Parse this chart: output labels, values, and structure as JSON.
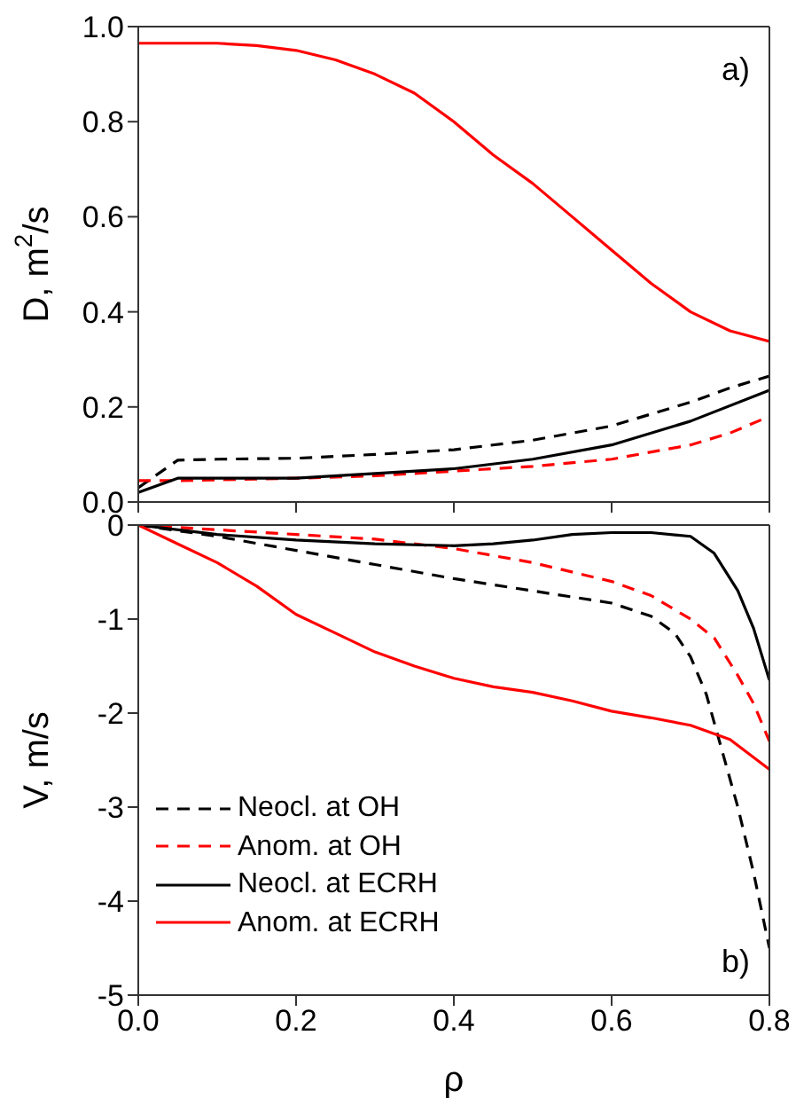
{
  "chart_data": [
    {
      "type": "line",
      "ylabel": "D, m$^{2}$/s",
      "xlim": [
        0,
        0.8
      ],
      "xticks": [
        0,
        0.2,
        0.4,
        0.6,
        0.8
      ],
      "ylim": [
        0,
        1.0
      ],
      "yticks": [
        {
          "value": 0,
          "label": "0.0"
        },
        0.2,
        0.4,
        0.6,
        0.8,
        {
          "value": 1.0,
          "label": "1.0"
        }
      ],
      "tick_labels": "y",
      "grid": false,
      "legend": false,
      "marker": "none",
      "annotations": [
        "a)"
      ],
      "series": [
        {
          "color": "#000000",
          "line_style": "dashed",
          "x": [
            0,
            0.05,
            0.1,
            0.2,
            0.3,
            0.4,
            0.5,
            0.6,
            0.7,
            0.75,
            0.8
          ],
          "values": [
            0.03,
            0.088,
            0.09,
            0.092,
            0.1,
            0.11,
            0.13,
            0.16,
            0.21,
            0.24,
            0.265
          ]
        },
        {
          "color": "#ff0000",
          "line_style": "dashed",
          "x": [
            0,
            0.05,
            0.2,
            0.3,
            0.4,
            0.5,
            0.6,
            0.7,
            0.75,
            0.8
          ],
          "values": [
            0.045,
            0.045,
            0.05,
            0.055,
            0.065,
            0.075,
            0.09,
            0.12,
            0.145,
            0.18
          ]
        },
        {
          "color": "#000000",
          "line_style": "solid",
          "x": [
            0,
            0.05,
            0.2,
            0.3,
            0.4,
            0.5,
            0.6,
            0.7,
            0.8
          ],
          "values": [
            0.02,
            0.05,
            0.05,
            0.06,
            0.07,
            0.09,
            0.12,
            0.17,
            0.235
          ]
        },
        {
          "color": "#ff0000",
          "line_style": "solid",
          "x": [
            0,
            0.1,
            0.15,
            0.2,
            0.25,
            0.3,
            0.35,
            0.4,
            0.45,
            0.5,
            0.55,
            0.6,
            0.65,
            0.7,
            0.75,
            0.8
          ],
          "values": [
            0.965,
            0.965,
            0.96,
            0.95,
            0.93,
            0.9,
            0.86,
            0.8,
            0.73,
            0.67,
            0.6,
            0.53,
            0.46,
            0.4,
            0.36,
            0.338
          ]
        }
      ]
    },
    {
      "type": "line",
      "xlabel": "ρ",
      "ylabel": "V, m/s",
      "xlim": [
        0,
        0.8
      ],
      "xticks": [
        {
          "value": 0,
          "label": "0.0"
        },
        0.2,
        0.4,
        0.6,
        0.8
      ],
      "ylim": [
        -5,
        0
      ],
      "yticks": [
        -5,
        -4,
        -3,
        -2,
        -1,
        0
      ],
      "grid": false,
      "legend": "bottom left",
      "marker": "none",
      "annotations": [
        "b)"
      ],
      "series": [
        {
          "name": "Neocl. at OH",
          "color": "#000000",
          "line_style": "dashed",
          "x": [
            0,
            0.1,
            0.2,
            0.3,
            0.4,
            0.5,
            0.6,
            0.65,
            0.68,
            0.7,
            0.72,
            0.74,
            0.76,
            0.78,
            0.8
          ],
          "values": [
            0,
            -0.12,
            -0.27,
            -0.42,
            -0.57,
            -0.7,
            -0.83,
            -0.97,
            -1.15,
            -1.4,
            -1.8,
            -2.4,
            -3.0,
            -3.7,
            -4.5
          ]
        },
        {
          "name": "Anom. at OH",
          "color": "#ff0000",
          "line_style": "dashed",
          "x": [
            0,
            0.1,
            0.2,
            0.3,
            0.4,
            0.5,
            0.6,
            0.65,
            0.7,
            0.73,
            0.76,
            0.78,
            0.8
          ],
          "values": [
            0,
            -0.05,
            -0.1,
            -0.15,
            -0.25,
            -0.4,
            -0.6,
            -0.75,
            -1.0,
            -1.2,
            -1.6,
            -1.9,
            -2.3
          ]
        },
        {
          "name": "Neocl. at ECRH",
          "color": "#000000",
          "line_style": "solid",
          "x": [
            0,
            0.1,
            0.2,
            0.3,
            0.4,
            0.45,
            0.5,
            0.55,
            0.6,
            0.65,
            0.7,
            0.73,
            0.76,
            0.78,
            0.8
          ],
          "values": [
            0,
            -0.1,
            -0.16,
            -0.2,
            -0.22,
            -0.2,
            -0.16,
            -0.1,
            -0.08,
            -0.08,
            -0.12,
            -0.3,
            -0.7,
            -1.1,
            -1.65
          ]
        },
        {
          "name": "Anom. at ECRH",
          "color": "#ff0000",
          "line_style": "solid",
          "x": [
            0,
            0.05,
            0.1,
            0.15,
            0.2,
            0.25,
            0.3,
            0.35,
            0.4,
            0.45,
            0.5,
            0.55,
            0.6,
            0.65,
            0.7,
            0.75,
            0.8
          ],
          "values": [
            0,
            -0.2,
            -0.4,
            -0.65,
            -0.95,
            -1.15,
            -1.35,
            -1.5,
            -1.63,
            -1.72,
            -1.78,
            -1.87,
            -1.98,
            -2.05,
            -2.13,
            -2.28,
            -2.6
          ]
        }
      ]
    }
  ]
}
